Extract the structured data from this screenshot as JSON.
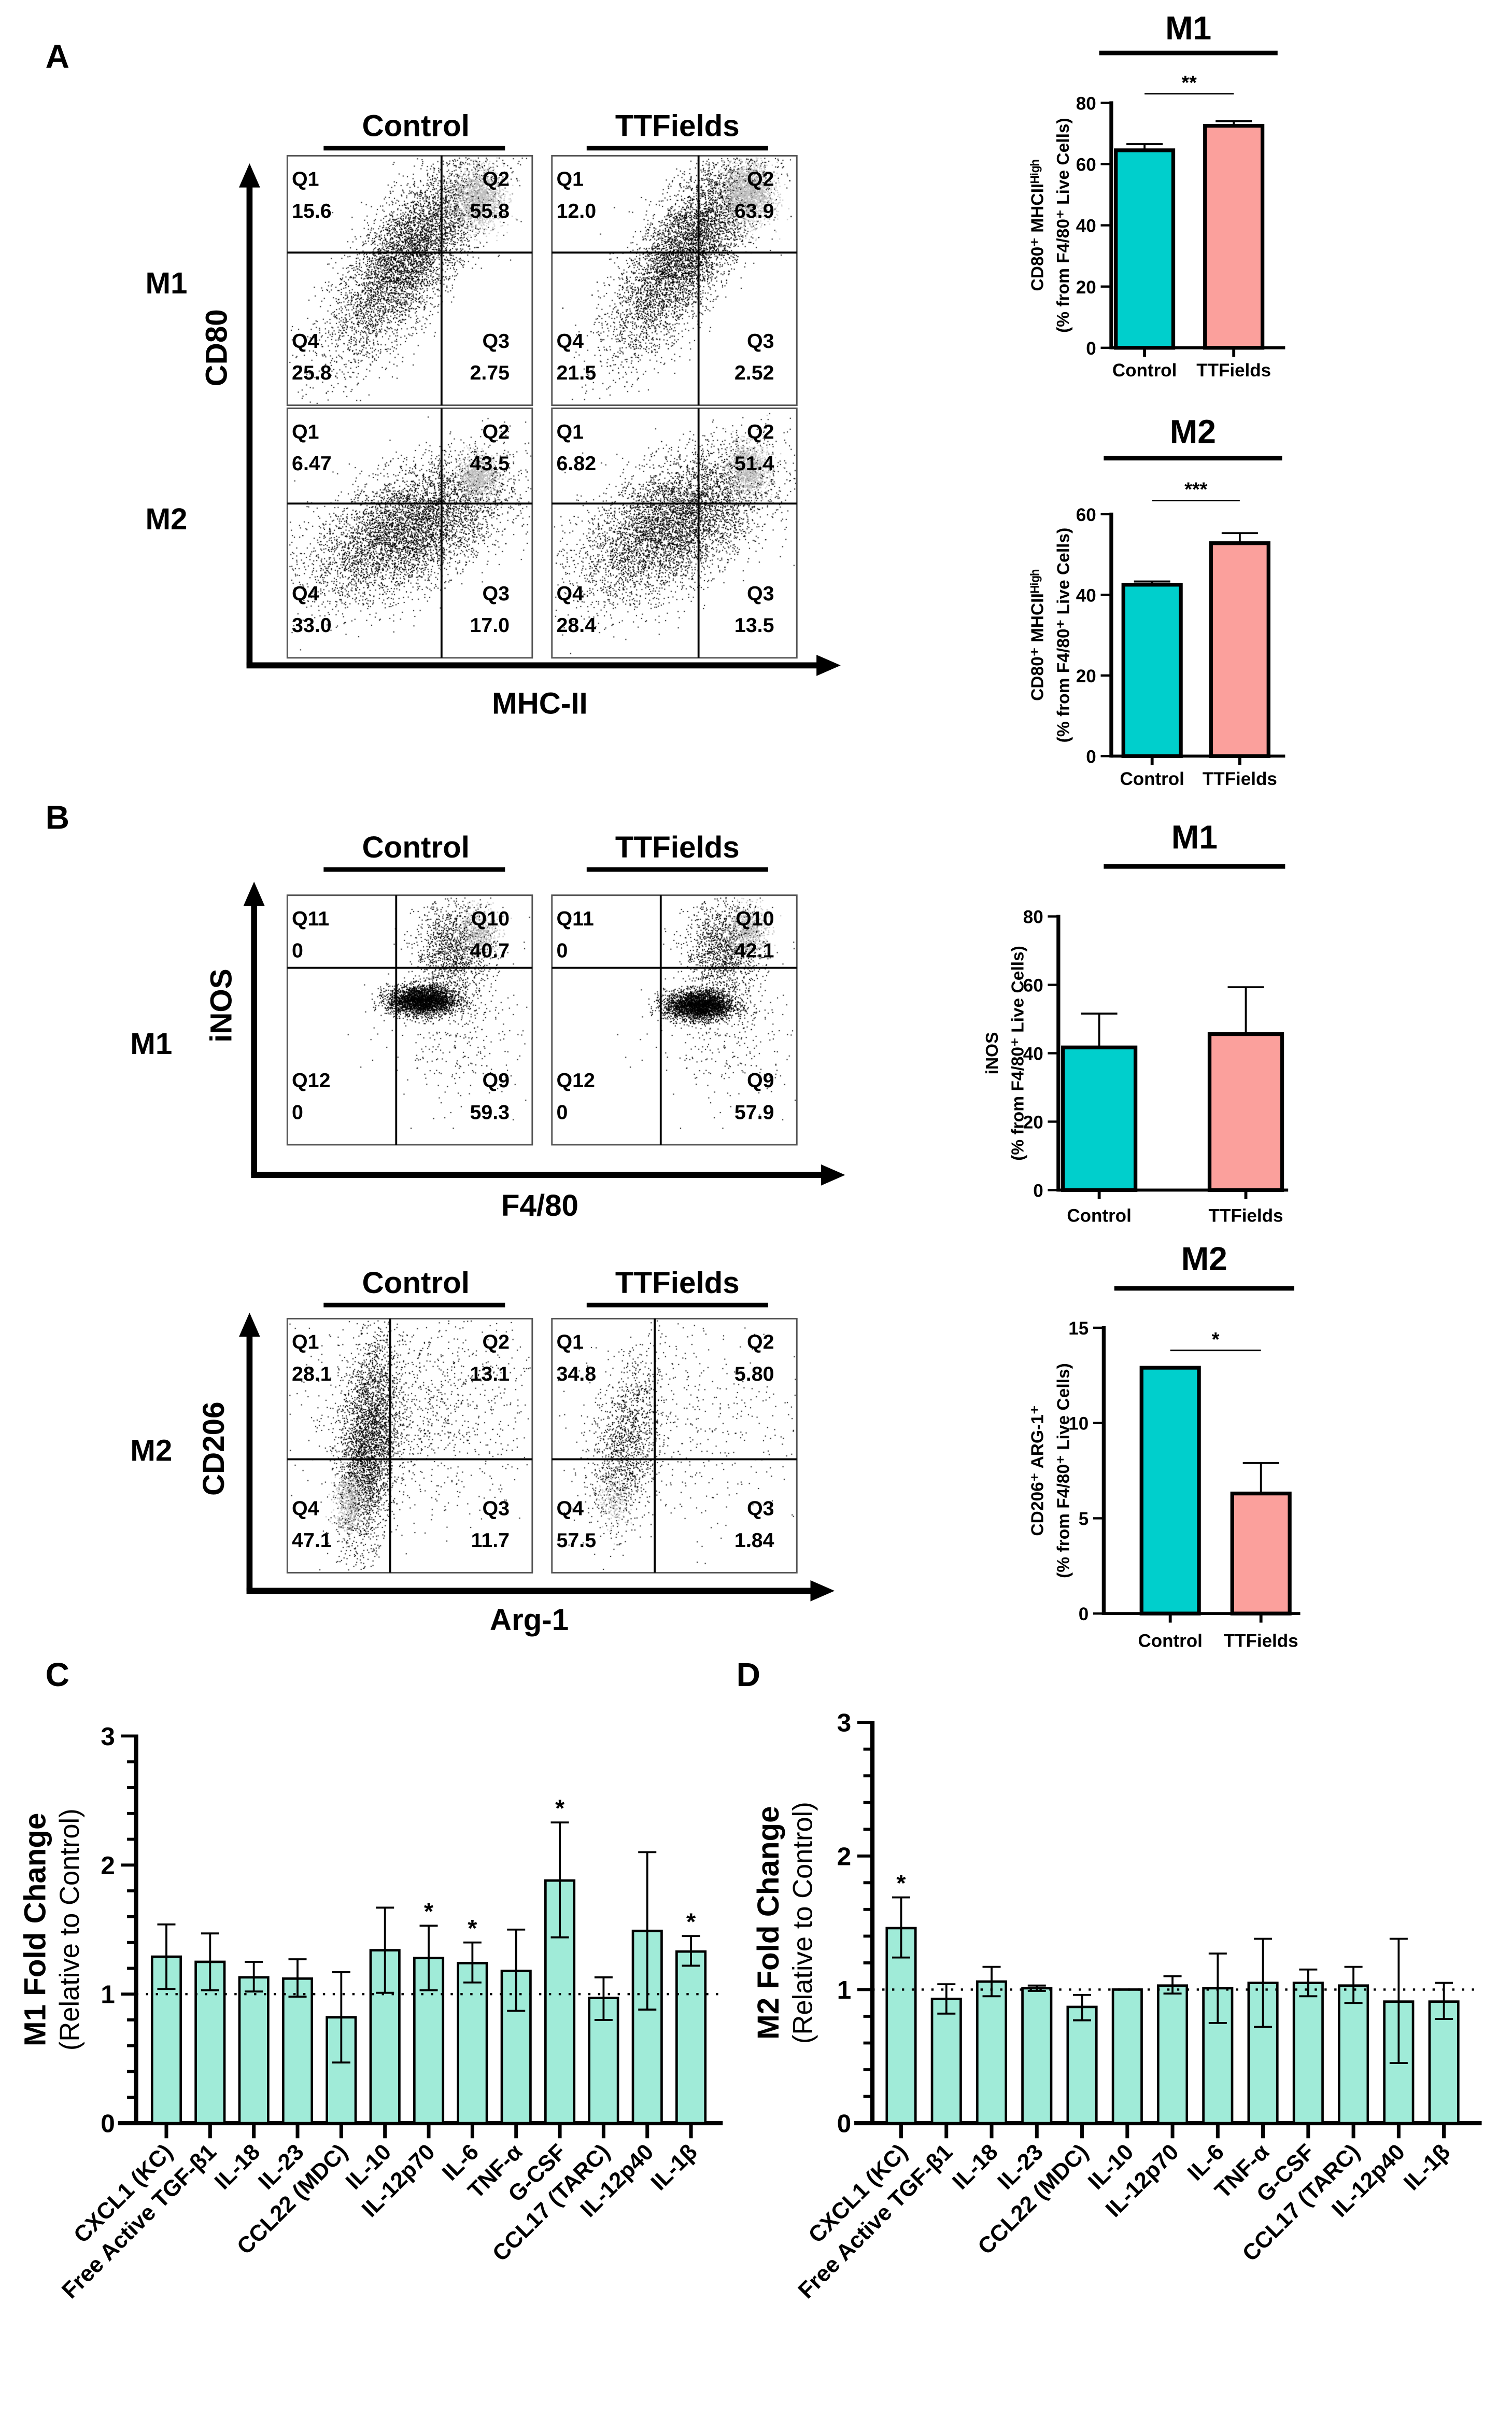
{
  "panel_labels": {
    "a": "A",
    "b": "B",
    "c": "C",
    "d": "D"
  },
  "flow": {
    "a": {
      "conditions": [
        "Control",
        "TTFields"
      ],
      "rows": [
        "M1",
        "M2"
      ],
      "y_axis": "CD80",
      "x_axis": "MHC-II",
      "plots": [
        {
          "row": 0,
          "cond": 0,
          "tl": {
            "name": "Q1",
            "value": "15.6"
          },
          "tr": {
            "name": "Q2",
            "value": "55.8"
          },
          "bl": {
            "name": "Q4",
            "value": "25.8"
          },
          "br": {
            "name": "Q3",
            "value": "2.75"
          }
        },
        {
          "row": 0,
          "cond": 1,
          "tl": {
            "name": "Q1",
            "value": "12.0"
          },
          "tr": {
            "name": "Q2",
            "value": "63.9"
          },
          "bl": {
            "name": "Q4",
            "value": "21.5"
          },
          "br": {
            "name": "Q3",
            "value": "2.52"
          }
        },
        {
          "row": 1,
          "cond": 0,
          "tl": {
            "name": "Q1",
            "value": "6.47"
          },
          "tr": {
            "name": "Q2",
            "value": "43.5"
          },
          "bl": {
            "name": "Q4",
            "value": "33.0"
          },
          "br": {
            "name": "Q3",
            "value": "17.0"
          }
        },
        {
          "row": 1,
          "cond": 1,
          "tl": {
            "name": "Q1",
            "value": "6.82"
          },
          "tr": {
            "name": "Q2",
            "value": "51.4"
          },
          "bl": {
            "name": "Q4",
            "value": "28.4"
          },
          "br": {
            "name": "Q3",
            "value": "13.5"
          }
        }
      ]
    },
    "b_m1": {
      "conditions": [
        "Control",
        "TTFields"
      ],
      "row": "M1",
      "y_axis": "iNOS",
      "x_axis": "F4/80",
      "plots": [
        {
          "cond": 0,
          "tl": {
            "name": "Q11",
            "value": "0"
          },
          "tr": {
            "name": "Q10",
            "value": "40.7"
          },
          "bl": {
            "name": "Q12",
            "value": "0"
          },
          "br": {
            "name": "Q9",
            "value": "59.3"
          }
        },
        {
          "cond": 1,
          "tl": {
            "name": "Q11",
            "value": "0"
          },
          "tr": {
            "name": "Q10",
            "value": "42.1"
          },
          "bl": {
            "name": "Q12",
            "value": "0"
          },
          "br": {
            "name": "Q9",
            "value": "57.9"
          }
        }
      ]
    },
    "b_m2": {
      "conditions": [
        "Control",
        "TTFields"
      ],
      "row": "M2",
      "y_axis": "CD206",
      "x_axis": "Arg-1",
      "plots": [
        {
          "cond": 0,
          "tl": {
            "name": "Q1",
            "value": "28.1"
          },
          "tr": {
            "name": "Q2",
            "value": "13.1"
          },
          "bl": {
            "name": "Q4",
            "value": "47.1"
          },
          "br": {
            "name": "Q3",
            "value": "11.7"
          }
        },
        {
          "cond": 1,
          "tl": {
            "name": "Q1",
            "value": "34.8"
          },
          "tr": {
            "name": "Q2",
            "value": "5.80"
          },
          "bl": {
            "name": "Q4",
            "value": "57.5"
          },
          "br": {
            "name": "Q3",
            "value": "1.84"
          }
        }
      ]
    }
  },
  "colors": {
    "control": "#00cfcc",
    "ttfields": "#fba09c",
    "cytokine": "#a0ebd8"
  },
  "chart_data": [
    {
      "id": "a_m1",
      "type": "bar",
      "title": "M1",
      "ylabel": [
        "CD80⁺ MHCIIᴴⁱᵍʰ",
        "(% from F4/80⁺ Live Cells)"
      ],
      "categories": [
        "Control",
        "TTFields"
      ],
      "values": [
        64.5,
        72.5
      ],
      "error_high": [
        66.5,
        74.0
      ],
      "ylim": [
        0,
        80
      ],
      "yticks": [
        "0",
        "20",
        "40",
        "60",
        "80"
      ],
      "significance": {
        "label": "**",
        "between": [
          0,
          1
        ]
      }
    },
    {
      "id": "a_m2",
      "type": "bar",
      "title": "M2",
      "ylabel": [
        "CD80⁺ MHCIIᴴⁱᵍʰ",
        "(% from F4/80⁺ Live Cells)"
      ],
      "categories": [
        "Control",
        "TTFields"
      ],
      "values": [
        42.5,
        52.8
      ],
      "error_high": [
        43.3,
        55.3
      ],
      "ylim": [
        0,
        60
      ],
      "yticks": [
        "0",
        "20",
        "40",
        "60"
      ],
      "significance": {
        "label": "***",
        "between": [
          0,
          1
        ]
      }
    },
    {
      "id": "b_m1",
      "type": "bar",
      "title": "M1",
      "ylabel": [
        "iNOS",
        "(% from F4/80⁺ Live Cells)"
      ],
      "categories": [
        "Control",
        "TTFields"
      ],
      "values": [
        41.7,
        45.6
      ],
      "error_high": [
        51.6,
        59.3
      ],
      "ylim": [
        0,
        80
      ],
      "yticks": [
        "0",
        "20",
        "40",
        "60",
        "80"
      ],
      "significance": null
    },
    {
      "id": "b_m2",
      "type": "bar",
      "title": "M2",
      "ylabel": [
        "CD206⁺ ARG-1⁺",
        "(% from F4/80⁺ Live Cells)"
      ],
      "categories": [
        "Control",
        "TTFields"
      ],
      "values": [
        12.9,
        6.3
      ],
      "error_high": [
        12.9,
        7.9
      ],
      "ylim": [
        0,
        15
      ],
      "yticks": [
        "0",
        "5",
        "10",
        "15"
      ],
      "significance": {
        "label": "*",
        "between": [
          0,
          1
        ]
      }
    },
    {
      "id": "c",
      "type": "bar",
      "ylabel": [
        "M1 Fold Change",
        "(Relative to Control)"
      ],
      "categories": [
        "CXCL1 (KC)",
        "Free Active TGF-β1",
        "IL-18",
        "IL-23",
        "CCL22 (MDC)",
        "IL-10",
        "IL-12p70",
        "IL-6",
        "TNF-α",
        "G-CSF",
        "CCL17 (TARC)",
        "IL-12p40",
        "IL-1β"
      ],
      "values": [
        1.29,
        1.25,
        1.13,
        1.12,
        0.82,
        1.34,
        1.28,
        1.24,
        1.18,
        1.88,
        0.97,
        1.49,
        1.33
      ],
      "error_low": [
        1.04,
        1.03,
        1.02,
        0.98,
        0.47,
        1.01,
        1.03,
        1.09,
        0.87,
        1.44,
        0.8,
        0.88,
        1.22
      ],
      "error_high": [
        1.54,
        1.47,
        1.25,
        1.27,
        1.17,
        1.67,
        1.53,
        1.4,
        1.5,
        2.33,
        1.13,
        2.1,
        1.45
      ],
      "stars": [
        "",
        "",
        "",
        "",
        "",
        "",
        "*",
        "*",
        "",
        "*",
        "",
        "",
        "*"
      ],
      "reference_line": 1,
      "ylim": [
        0,
        3
      ],
      "yticks": [
        "0",
        "1",
        "2",
        "3"
      ]
    },
    {
      "id": "d",
      "type": "bar",
      "ylabel": [
        "M2 Fold Change",
        "(Relative to Control)"
      ],
      "categories": [
        "CXCL1 (KC)",
        "Free Active TGF-β1",
        "IL-18",
        "IL-23",
        "CCL22 (MDC)",
        "IL-10",
        "IL-12p70",
        "IL-6",
        "TNF-α",
        "G-CSF",
        "CCL17 (TARC)",
        "IL-12p40",
        "IL-1β"
      ],
      "values": [
        1.46,
        0.93,
        1.06,
        1.01,
        0.87,
        1.0,
        1.03,
        1.01,
        1.05,
        1.05,
        1.03,
        0.91,
        0.91
      ],
      "error_low": [
        1.24,
        0.82,
        0.95,
        0.99,
        0.77,
        1.0,
        0.97,
        0.75,
        0.72,
        0.95,
        0.9,
        0.45,
        0.78
      ],
      "error_high": [
        1.69,
        1.04,
        1.17,
        1.03,
        0.96,
        1.0,
        1.1,
        1.27,
        1.38,
        1.15,
        1.17,
        1.38,
        1.05
      ],
      "stars": [
        "*",
        "",
        "",
        "",
        "",
        "",
        "",
        "",
        "",
        "",
        "",
        "",
        ""
      ],
      "reference_line": 1,
      "ylim": [
        0,
        3
      ],
      "yticks": [
        "0",
        "1",
        "2",
        "3"
      ]
    }
  ]
}
